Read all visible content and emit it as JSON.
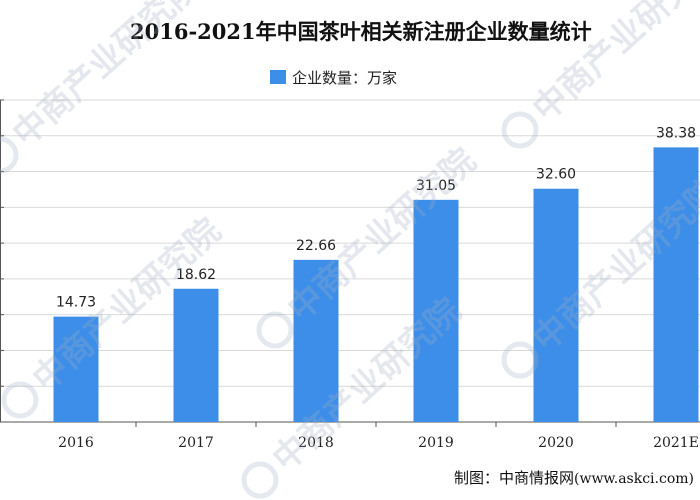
{
  "chart_data": {
    "type": "bar",
    "title": "2016-2021年中国茶叶相关新注册企业数量统计",
    "categories": [
      "2016",
      "2017",
      "2018",
      "2019",
      "2020",
      "2021E"
    ],
    "series": [
      {
        "name": "企业数量：万家",
        "values": [
          14.73,
          18.62,
          22.66,
          31.05,
          32.6,
          38.38
        ]
      }
    ],
    "data_labels": [
      "14.73",
      "18.62",
      "22.66",
      "31.05",
      "32.60",
      "38.38"
    ],
    "ylim": [
      0,
      45
    ],
    "ytick_step": 5,
    "xlabel": "",
    "ylabel": "",
    "grid": true,
    "legend_position": "top",
    "bar_color": "#3d8ee8"
  },
  "watermark": {
    "text": "中商产业研究院"
  },
  "credit": {
    "prefix": "制图：中商情报网",
    "site": "(www.askci.com)"
  }
}
